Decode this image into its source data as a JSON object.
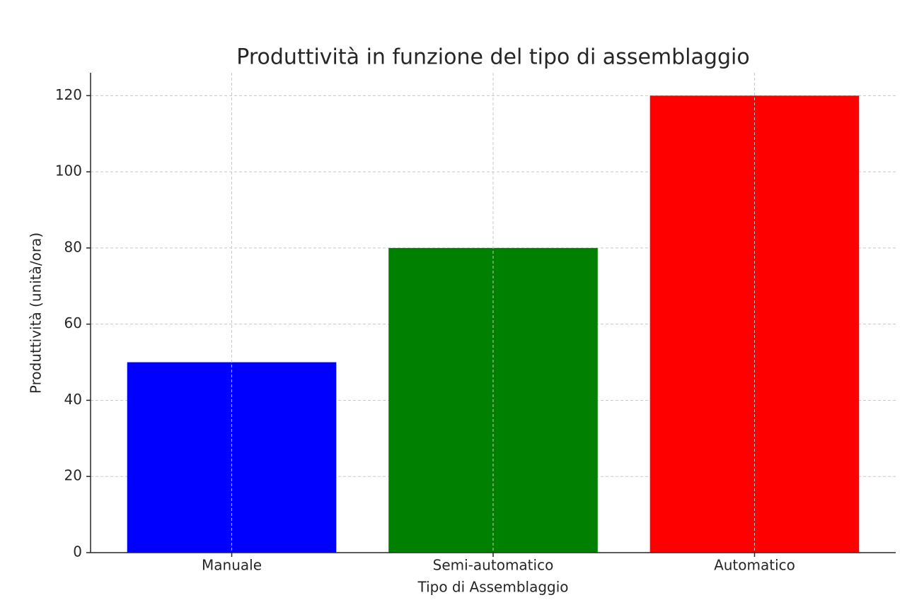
{
  "chart_data": {
    "type": "bar",
    "title": "Produttività in funzione del tipo di assemblaggio",
    "x_label": "Tipo di Assemblaggio",
    "y_label": "Produttività (unità/ora)",
    "categories": [
      "Manuale",
      "Semi-automatico",
      "Automatico"
    ],
    "values": [
      50,
      80,
      120
    ],
    "colors": [
      "#0000ff",
      "#008000",
      "#ff0000"
    ],
    "ylim": [
      0,
      126
    ],
    "yticks": [
      0,
      20,
      40,
      60,
      80,
      100,
      120
    ],
    "grid": true
  }
}
